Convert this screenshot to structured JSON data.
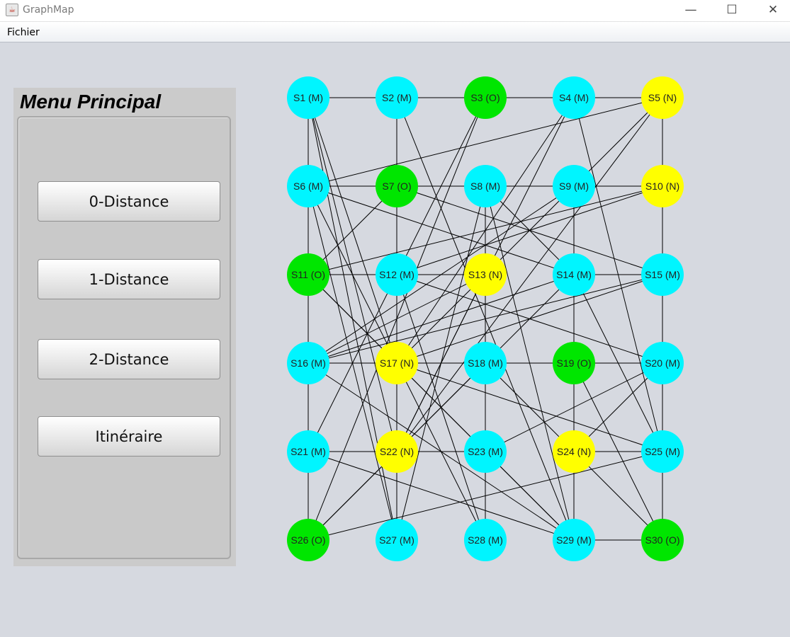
{
  "window": {
    "title": "GraphMap",
    "minimize": "—",
    "maximize": "☐",
    "close": "✕"
  },
  "menubar": {
    "items": [
      "Fichier"
    ]
  },
  "menu": {
    "title": "Menu Principal",
    "buttons": [
      "0-Distance",
      "1-Distance",
      "2-Distance",
      "Itinéraire"
    ]
  },
  "colors": {
    "M": "#00f5ff",
    "O": "#00e600",
    "N": "#ffff00"
  },
  "graph": {
    "nodes": [
      {
        "id": 1,
        "label": "S1 (M)",
        "type": "M"
      },
      {
        "id": 2,
        "label": "S2 (M)",
        "type": "M"
      },
      {
        "id": 3,
        "label": "S3 (O)",
        "type": "O"
      },
      {
        "id": 4,
        "label": "S4 (M)",
        "type": "M"
      },
      {
        "id": 5,
        "label": "S5 (N)",
        "type": "N"
      },
      {
        "id": 6,
        "label": "S6 (M)",
        "type": "M"
      },
      {
        "id": 7,
        "label": "S7 (O)",
        "type": "O"
      },
      {
        "id": 8,
        "label": "S8 (M)",
        "type": "M"
      },
      {
        "id": 9,
        "label": "S9 (M)",
        "type": "M"
      },
      {
        "id": 10,
        "label": "S10 (N)",
        "type": "N"
      },
      {
        "id": 11,
        "label": "S11 (O)",
        "type": "O"
      },
      {
        "id": 12,
        "label": "S12 (M)",
        "type": "M"
      },
      {
        "id": 13,
        "label": "S13 (N)",
        "type": "N"
      },
      {
        "id": 14,
        "label": "S14 (M)",
        "type": "M"
      },
      {
        "id": 15,
        "label": "S15 (M)",
        "type": "M"
      },
      {
        "id": 16,
        "label": "S16 (M)",
        "type": "M"
      },
      {
        "id": 17,
        "label": "S17 (N)",
        "type": "N"
      },
      {
        "id": 18,
        "label": "S18 (M)",
        "type": "M"
      },
      {
        "id": 19,
        "label": "S19 (O)",
        "type": "O"
      },
      {
        "id": 20,
        "label": "S20 (M)",
        "type": "M"
      },
      {
        "id": 21,
        "label": "S21 (M)",
        "type": "M"
      },
      {
        "id": 22,
        "label": "S22 (N)",
        "type": "N"
      },
      {
        "id": 23,
        "label": "S23 (M)",
        "type": "M"
      },
      {
        "id": 24,
        "label": "S24 (N)",
        "type": "N"
      },
      {
        "id": 25,
        "label": "S25 (M)",
        "type": "M"
      },
      {
        "id": 26,
        "label": "S26 (O)",
        "type": "O"
      },
      {
        "id": 27,
        "label": "S27 (M)",
        "type": "M"
      },
      {
        "id": 28,
        "label": "S28 (M)",
        "type": "M"
      },
      {
        "id": 29,
        "label": "S29 (M)",
        "type": "M"
      },
      {
        "id": 30,
        "label": "S30 (O)",
        "type": "O"
      }
    ],
    "edges": [
      [
        1,
        2
      ],
      [
        2,
        3
      ],
      [
        3,
        4
      ],
      [
        4,
        5
      ],
      [
        6,
        7
      ],
      [
        7,
        8
      ],
      [
        9,
        10
      ],
      [
        11,
        12
      ],
      [
        12,
        13
      ],
      [
        14,
        15
      ],
      [
        16,
        17
      ],
      [
        17,
        18
      ],
      [
        18,
        19
      ],
      [
        19,
        20
      ],
      [
        21,
        22
      ],
      [
        22,
        23
      ],
      [
        24,
        25
      ],
      [
        29,
        30
      ],
      [
        1,
        6
      ],
      [
        6,
        11
      ],
      [
        11,
        16
      ],
      [
        16,
        21
      ],
      [
        21,
        26
      ],
      [
        2,
        7
      ],
      [
        7,
        12
      ],
      [
        12,
        17
      ],
      [
        17,
        22
      ],
      [
        9,
        14
      ],
      [
        14,
        19
      ],
      [
        19,
        24
      ],
      [
        24,
        29
      ],
      [
        5,
        10
      ],
      [
        10,
        15
      ],
      [
        15,
        20
      ],
      [
        20,
        25
      ],
      [
        25,
        30
      ],
      [
        1,
        17
      ],
      [
        1,
        22
      ],
      [
        1,
        27
      ],
      [
        6,
        5
      ],
      [
        6,
        14
      ],
      [
        6,
        27
      ],
      [
        6,
        28
      ],
      [
        3,
        26
      ],
      [
        4,
        22
      ],
      [
        4,
        17
      ],
      [
        4,
        25
      ],
      [
        5,
        17
      ],
      [
        5,
        22
      ],
      [
        8,
        13
      ],
      [
        8,
        14
      ],
      [
        8,
        29
      ],
      [
        8,
        27
      ],
      [
        7,
        15
      ],
      [
        7,
        11
      ],
      [
        9,
        16
      ],
      [
        9,
        29
      ],
      [
        10,
        12
      ],
      [
        11,
        23
      ],
      [
        11,
        29
      ],
      [
        12,
        20
      ],
      [
        12,
        22
      ],
      [
        13,
        16
      ],
      [
        13,
        28
      ],
      [
        13,
        22
      ],
      [
        14,
        16
      ],
      [
        14,
        25
      ],
      [
        15,
        16
      ],
      [
        15,
        17
      ],
      [
        16,
        29
      ],
      [
        17,
        25
      ],
      [
        18,
        28
      ],
      [
        18,
        26
      ],
      [
        18,
        30
      ],
      [
        19,
        30
      ],
      [
        20,
        23
      ],
      [
        21,
        29
      ],
      [
        22,
        27
      ],
      [
        23,
        29
      ],
      [
        24,
        20
      ],
      [
        25,
        26
      ],
      [
        26,
        14
      ],
      [
        28,
        12
      ],
      [
        2,
        29
      ],
      [
        3,
        21
      ],
      [
        8,
        18
      ],
      [
        10,
        11
      ],
      [
        9,
        6
      ]
    ]
  }
}
